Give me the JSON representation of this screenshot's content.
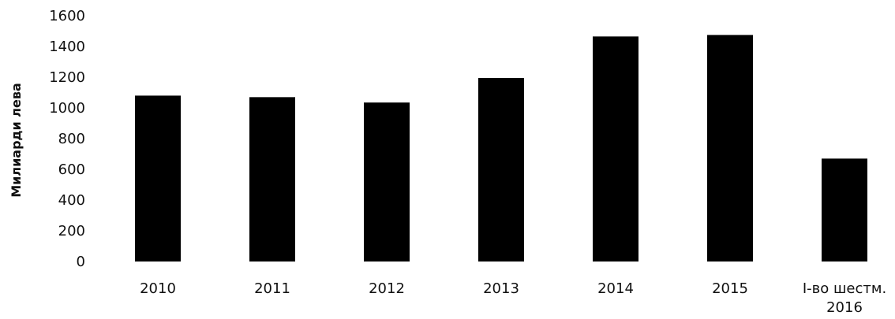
{
  "chart_data": {
    "type": "bar",
    "categories": [
      "2010",
      "2011",
      "2012",
      "2013",
      "2014",
      "2015",
      "I-во шестм. 2016"
    ],
    "values": [
      1080,
      1070,
      1035,
      1195,
      1465,
      1475,
      670
    ],
    "title": "",
    "xlabel": "",
    "ylabel": "Милиарди лева",
    "ylim": [
      0,
      1600
    ],
    "yticks": [
      0,
      200,
      400,
      600,
      800,
      1000,
      1200,
      1400,
      1600
    ],
    "bar_color": "#000000",
    "grid": false,
    "legend": "none"
  }
}
